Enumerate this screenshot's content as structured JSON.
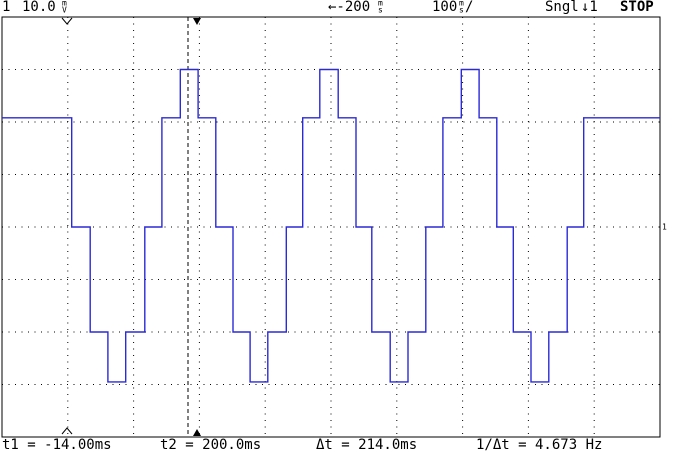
{
  "header": {
    "channel": "1",
    "scale": "10.0",
    "scale_unit_top": "m",
    "scale_unit_bottom": "V",
    "delay": "←-200",
    "delay_unit_top": "m",
    "delay_unit_bottom": "s",
    "timebase": "100",
    "timebase_unit_top": "m",
    "timebase_unit_bottom": "s",
    "timebase_suffix": "/",
    "mode": "Sngl",
    "trigger": "↓1",
    "status": "STOP"
  },
  "footer": {
    "t1": "t1 = -14.00ms",
    "t2": "t2 = 200.0ms",
    "dt": "Δt = 214.0ms",
    "inv_dt": "1/Δt = 4.673 Hz"
  },
  "ground_marker": "1",
  "chart_data": {
    "type": "line",
    "x": [
      0,
      1.06,
      1.06,
      1.34,
      1.34,
      1.61,
      1.61,
      1.88,
      1.88,
      2.17,
      2.17,
      2.43,
      2.43,
      2.71,
      2.71,
      2.98,
      2.98,
      3.25,
      3.25,
      3.51,
      3.51,
      3.77,
      3.77,
      4.04,
      4.04,
      4.32,
      4.32,
      4.57,
      4.57,
      4.83,
      4.83,
      5.11,
      5.11,
      5.38,
      5.38,
      5.62,
      5.62,
      5.9,
      5.9,
      6.17,
      6.17,
      6.44,
      6.44,
      6.7,
      6.7,
      6.98,
      6.98,
      7.25,
      7.25,
      7.52,
      7.52,
      7.77,
      7.77,
      8.04,
      8.04,
      8.31,
      8.31,
      8.59,
      8.59,
      8.84,
      8.84,
      10
    ],
    "series": [
      {
        "color": "#2a2ad6",
        "values": [
          2.08,
          2.08,
          0,
          0,
          -2,
          -2,
          -2.95,
          -2.95,
          -2,
          -2,
          0,
          0,
          2.08,
          2.08,
          3,
          3,
          2.08,
          2.08,
          0,
          0,
          -2,
          -2,
          -2.95,
          -2.95,
          -2,
          -2,
          0,
          0,
          2.08,
          2.08,
          3,
          3,
          2.08,
          2.08,
          0,
          0,
          -2,
          -2,
          -2.95,
          -2.95,
          -2,
          -2,
          0,
          0,
          2.08,
          2.08,
          3,
          3,
          2.08,
          2.08,
          0,
          0,
          -2,
          -2,
          -2.95,
          -2.95,
          -2,
          -2,
          0,
          0,
          2.08,
          2.08
        ]
      }
    ],
    "xlim": [
      0,
      10
    ],
    "ylim": [
      -4,
      4
    ],
    "xticks": [
      0,
      1,
      2,
      3,
      4,
      5,
      6,
      7,
      8,
      9,
      10
    ],
    "yticks": [
      -4,
      -3,
      -2,
      -1,
      0,
      1,
      2,
      3,
      4
    ],
    "grid": true
  }
}
